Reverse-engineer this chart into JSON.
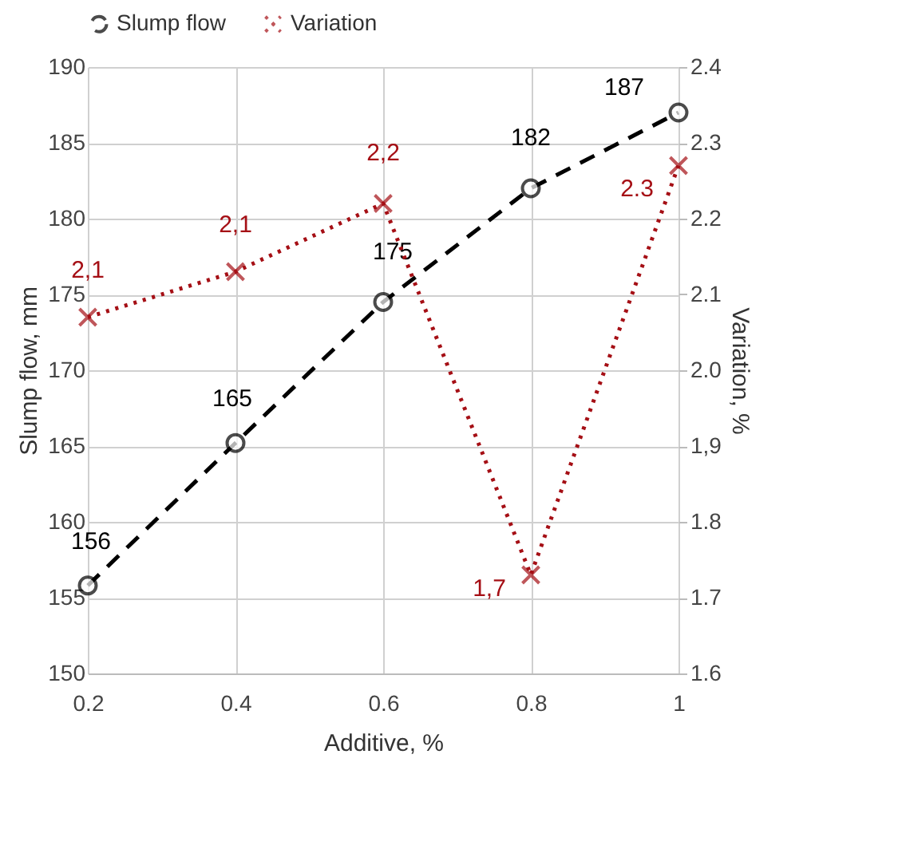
{
  "chart_data": {
    "type": "line",
    "xlabel": "Additive, %",
    "ylabel": "Slump flow, mm",
    "y2label": "Variation, %",
    "x": [
      0.2,
      0.4,
      0.6,
      0.8,
      1
    ],
    "xlim": [
      0.2,
      1
    ],
    "xticks": [
      0.2,
      0.4,
      0.6,
      0.8,
      1
    ],
    "ylim": [
      150,
      190
    ],
    "yticks": [
      150,
      155,
      160,
      165,
      170,
      175,
      180,
      185,
      190
    ],
    "y2lim": [
      1.6,
      2.4
    ],
    "y2ticks": [
      1.6,
      1.7,
      1.8,
      {
        "value": 1.9,
        "label": "1,9"
      },
      {
        "value": 2,
        "label": "2.0"
      },
      2.1,
      2.2,
      2.3,
      2.4
    ],
    "grid": true,
    "legend": "top",
    "series": [
      {
        "name": "Slump flow",
        "color": "#000000",
        "values": [
          155.8,
          165.2,
          174.5,
          182,
          187
        ],
        "value_labels": [
          "156",
          "165",
          "175",
          "182",
          "187"
        ],
        "marker": "circle",
        "line_style": "dashed"
      },
      {
        "name": "Variation",
        "color": "#a50f15",
        "axis": "y2",
        "values": [
          2.07,
          2.13,
          2.22,
          1.73,
          2.27
        ],
        "value_labels": [
          "2,1",
          "2,1",
          "2,2",
          "1,7",
          "2.3"
        ],
        "marker": "cross",
        "line_style": "dotted"
      }
    ]
  }
}
